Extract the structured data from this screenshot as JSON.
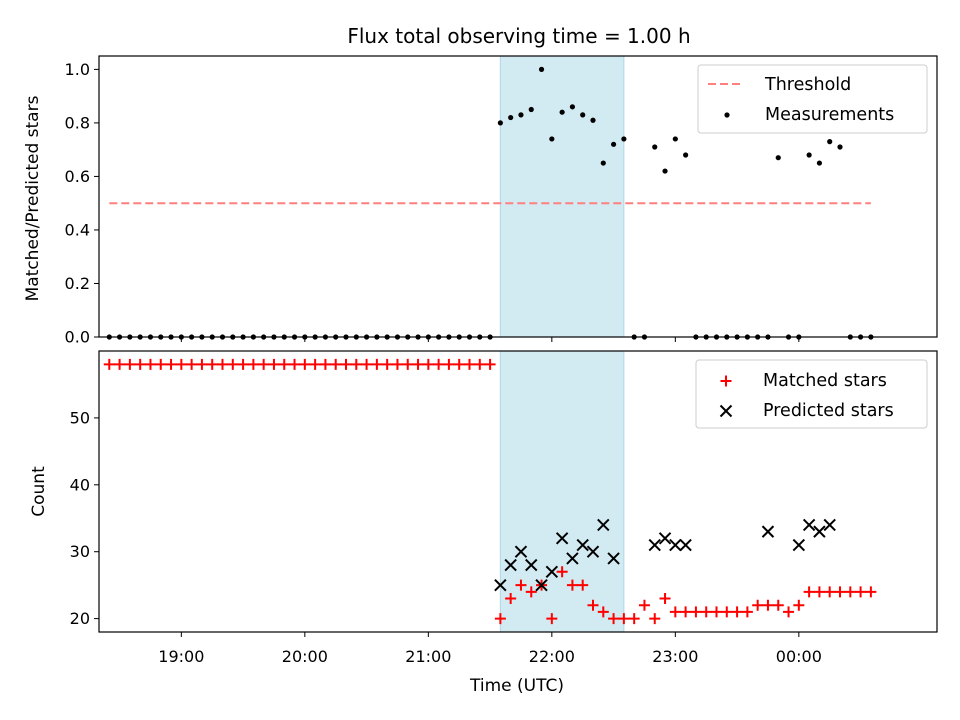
{
  "title": "Flux total observing time = 1.00 h",
  "colors": {
    "threshold": "#ff7f7f",
    "measurement": "#000000",
    "matched": "#ff0000",
    "predicted": "#000000",
    "window": "#add8e6"
  },
  "chart_data": [
    {
      "type": "scatter",
      "ylabel": "Matched/Predicted stars",
      "ylim": [
        0,
        1.05
      ],
      "yticks": [
        "0.0",
        "0.2",
        "0.4",
        "0.6",
        "0.8",
        "1.0"
      ],
      "highlight_window": [
        "21:35",
        "22:35"
      ],
      "legend": [
        "Threshold",
        "Measurements"
      ],
      "legend_position": "top-right",
      "series": [
        {
          "name": "Threshold",
          "style": "dashed-line",
          "x": [
            "18:25",
            "00:35"
          ],
          "y": [
            0.5,
            0.5
          ]
        },
        {
          "name": "Measurements",
          "style": "dot",
          "x": [
            "18:25",
            "18:30",
            "18:35",
            "18:40",
            "18:45",
            "18:50",
            "18:55",
            "19:00",
            "19:05",
            "19:10",
            "19:15",
            "19:20",
            "19:25",
            "19:30",
            "19:35",
            "19:40",
            "19:45",
            "19:50",
            "19:55",
            "20:00",
            "20:05",
            "20:10",
            "20:15",
            "20:20",
            "20:25",
            "20:30",
            "20:35",
            "20:40",
            "20:45",
            "20:50",
            "20:55",
            "21:00",
            "21:05",
            "21:10",
            "21:15",
            "21:20",
            "21:25",
            "21:30",
            "21:35",
            "21:40",
            "21:45",
            "21:50",
            "21:55",
            "22:00",
            "22:05",
            "22:10",
            "22:15",
            "22:20",
            "22:25",
            "22:30",
            "22:35",
            "22:40",
            "22:45",
            "22:50",
            "22:55",
            "23:00",
            "23:05",
            "23:10",
            "23:15",
            "23:20",
            "23:25",
            "23:30",
            "23:35",
            "23:40",
            "23:45",
            "23:50",
            "23:55",
            "00:00",
            "00:05",
            "00:10",
            "00:15",
            "00:20",
            "00:25",
            "00:30",
            "00:35"
          ],
          "y": [
            0,
            0,
            0,
            0,
            0,
            0,
            0,
            0,
            0,
            0,
            0,
            0,
            0,
            0,
            0,
            0,
            0,
            0,
            0,
            0,
            0,
            0,
            0,
            0,
            0,
            0,
            0,
            0,
            0,
            0,
            0,
            0,
            0,
            0,
            0,
            0,
            0,
            0,
            0.8,
            0.82,
            0.83,
            0.85,
            1.0,
            0.74,
            0.84,
            0.86,
            0.83,
            0.81,
            0.65,
            0.72,
            0.74,
            0,
            0,
            0.71,
            0.62,
            0.74,
            0.68,
            0,
            0,
            0,
            0,
            0,
            0,
            0,
            0,
            0.67,
            0,
            0,
            0.68,
            0.65,
            0.73,
            0.71,
            0,
            0,
            0
          ]
        }
      ]
    },
    {
      "type": "scatter",
      "xlabel": "Time (UTC)",
      "ylabel": "Count",
      "ylim": [
        18,
        60
      ],
      "yticks": [
        "20",
        "30",
        "40",
        "50"
      ],
      "xticks": [
        "19:00",
        "20:00",
        "21:00",
        "22:00",
        "23:00",
        "00:00"
      ],
      "highlight_window": [
        "21:35",
        "22:35"
      ],
      "legend": [
        "Matched stars",
        "Predicted stars"
      ],
      "legend_position": "top-right",
      "series": [
        {
          "name": "Matched stars",
          "style": "plus",
          "x": [
            "18:25",
            "18:30",
            "18:35",
            "18:40",
            "18:45",
            "18:50",
            "18:55",
            "19:00",
            "19:05",
            "19:10",
            "19:15",
            "19:20",
            "19:25",
            "19:30",
            "19:35",
            "19:40",
            "19:45",
            "19:50",
            "19:55",
            "20:00",
            "20:05",
            "20:10",
            "20:15",
            "20:20",
            "20:25",
            "20:30",
            "20:35",
            "20:40",
            "20:45",
            "20:50",
            "20:55",
            "21:00",
            "21:05",
            "21:10",
            "21:15",
            "21:20",
            "21:25",
            "21:30",
            "21:35",
            "21:40",
            "21:45",
            "21:50",
            "21:55",
            "22:00",
            "22:05",
            "22:10",
            "22:15",
            "22:20",
            "22:25",
            "22:30",
            "22:35",
            "22:40",
            "22:45",
            "22:50",
            "22:55",
            "23:00",
            "23:05",
            "23:10",
            "23:15",
            "23:20",
            "23:25",
            "23:30",
            "23:35",
            "23:40",
            "23:45",
            "23:50",
            "23:55",
            "00:00",
            "00:05",
            "00:10",
            "00:15",
            "00:20",
            "00:25",
            "00:30",
            "00:35"
          ],
          "y": [
            58,
            58,
            58,
            58,
            58,
            58,
            58,
            58,
            58,
            58,
            58,
            58,
            58,
            58,
            58,
            58,
            58,
            58,
            58,
            58,
            58,
            58,
            58,
            58,
            58,
            58,
            58,
            58,
            58,
            58,
            58,
            58,
            58,
            58,
            58,
            58,
            58,
            58,
            20,
            23,
            25,
            24,
            25,
            20,
            27,
            25,
            25,
            22,
            21,
            20,
            20,
            20,
            22,
            20,
            23,
            21,
            21,
            21,
            21,
            21,
            21,
            21,
            21,
            22,
            22,
            22,
            21,
            22,
            24,
            24,
            24,
            24,
            24,
            24,
            24
          ]
        },
        {
          "name": "Predicted stars",
          "style": "x",
          "x": [
            "21:35",
            "21:40",
            "21:45",
            "21:50",
            "21:55",
            "22:00",
            "22:05",
            "22:10",
            "22:15",
            "22:20",
            "22:25",
            "22:30",
            "22:50",
            "22:55",
            "23:00",
            "23:05",
            "23:45",
            "00:00",
            "00:05",
            "00:10",
            "00:15"
          ],
          "y": [
            25,
            28,
            30,
            28,
            25,
            27,
            32,
            29,
            31,
            30,
            34,
            29,
            31,
            32,
            31,
            31,
            33,
            31,
            34,
            33,
            34
          ]
        }
      ]
    }
  ]
}
